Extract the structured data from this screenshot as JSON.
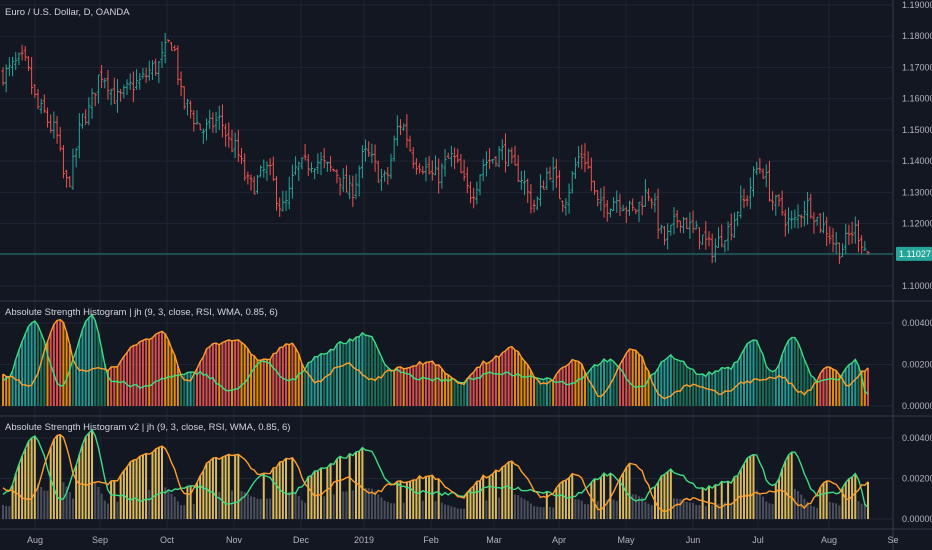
{
  "theme": {
    "background": "#131722",
    "grid": "#1f2433",
    "separator": "#363a45",
    "text": "#b2b5be",
    "bull": "#26a69a",
    "bear": "#ef5350",
    "price_tag": "#26a69a",
    "hist_up_strong": "#26a69a",
    "hist_down_strong": "#ef5350",
    "hist_orange": "#ff9800",
    "hist_yellow": "#e6c35c",
    "hist_gray": "#4e5260",
    "line_bull": "#3ddc84",
    "line_bear": "#ff9e2c"
  },
  "chart_data": [
    {
      "type": "ohlc",
      "title": "Euro / U.S. Dollar, D, OANDA",
      "ylim": [
        1.095,
        1.19
      ],
      "y_ticks": [
        "1.10000",
        "1.11000",
        "1.12000",
        "1.13000",
        "1.14000",
        "1.15000",
        "1.16000",
        "1.17000",
        "1.18000",
        "1.19000"
      ],
      "last_price": "1.11027",
      "x_ticks": [
        "Aug",
        "Sep",
        "Oct",
        "Nov",
        "Dec",
        "2019",
        "Feb",
        "Mar",
        "Apr",
        "May",
        "Jun",
        "Jul",
        "Aug",
        "Se"
      ],
      "close_anchors": [
        [
          0,
          1.168
        ],
        [
          6,
          1.172
        ],
        [
          12,
          1.156
        ],
        [
          16,
          1.15
        ],
        [
          20,
          1.133
        ],
        [
          26,
          1.155
        ],
        [
          31,
          1.168
        ],
        [
          36,
          1.16
        ],
        [
          42,
          1.165
        ],
        [
          48,
          1.17
        ],
        [
          53,
          1.178
        ],
        [
          57,
          1.158
        ],
        [
          63,
          1.15
        ],
        [
          68,
          1.153
        ],
        [
          72,
          1.145
        ],
        [
          78,
          1.132
        ],
        [
          83,
          1.137
        ],
        [
          88,
          1.125
        ],
        [
          93,
          1.138
        ],
        [
          98,
          1.14
        ],
        [
          104,
          1.137
        ],
        [
          109,
          1.13
        ],
        [
          114,
          1.142
        ],
        [
          120,
          1.134
        ],
        [
          125,
          1.152
        ],
        [
          130,
          1.14
        ],
        [
          136,
          1.135
        ],
        [
          141,
          1.141
        ],
        [
          147,
          1.13
        ],
        [
          152,
          1.14
        ],
        [
          157,
          1.143
        ],
        [
          162,
          1.136
        ],
        [
          167,
          1.126
        ],
        [
          172,
          1.137
        ],
        [
          176,
          1.128
        ],
        [
          182,
          1.142
        ],
        [
          188,
          1.125
        ],
        [
          193,
          1.128
        ],
        [
          198,
          1.124
        ],
        [
          203,
          1.13
        ],
        [
          208,
          1.115
        ],
        [
          213,
          1.122
        ],
        [
          218,
          1.117
        ],
        [
          223,
          1.112
        ],
        [
          228,
          1.118
        ],
        [
          232,
          1.126
        ],
        [
          238,
          1.138
        ],
        [
          243,
          1.126
        ],
        [
          248,
          1.12
        ],
        [
          253,
          1.126
        ],
        [
          258,
          1.119
        ],
        [
          263,
          1.112
        ],
        [
          268,
          1.118
        ],
        [
          272,
          1.111
        ]
      ],
      "count": 273
    },
    {
      "type": "histogram",
      "title": "Absolute Strength Histogram | jh (9, 3, close, RSI, WMA, 0.85, 6)",
      "ylim": [
        0,
        0.0047
      ],
      "y_ticks": [
        "0.00000",
        "0.00200",
        "0.00400"
      ],
      "bull_anchors": [
        [
          0,
          0.0012
        ],
        [
          10,
          0.004
        ],
        [
          18,
          0.001
        ],
        [
          28,
          0.0044
        ],
        [
          34,
          0.0012
        ],
        [
          44,
          0.0009
        ],
        [
          52,
          0.0014
        ],
        [
          62,
          0.0016
        ],
        [
          72,
          0.0007
        ],
        [
          82,
          0.0021
        ],
        [
          90,
          0.0012
        ],
        [
          100,
          0.0025
        ],
        [
          108,
          0.0031
        ],
        [
          114,
          0.0035
        ],
        [
          122,
          0.0018
        ],
        [
          132,
          0.0013
        ],
        [
          144,
          0.0012
        ],
        [
          156,
          0.0016
        ],
        [
          168,
          0.0014
        ],
        [
          178,
          0.0011
        ],
        [
          190,
          0.0022
        ],
        [
          200,
          0.0009
        ],
        [
          210,
          0.0024
        ],
        [
          220,
          0.0015
        ],
        [
          228,
          0.0018
        ],
        [
          236,
          0.0032
        ],
        [
          242,
          0.0016
        ],
        [
          248,
          0.0033
        ],
        [
          256,
          0.0012
        ],
        [
          262,
          0.0013
        ],
        [
          268,
          0.0022
        ],
        [
          272,
          0.0005
        ]
      ],
      "bear_anchors": [
        [
          0,
          0.0015
        ],
        [
          8,
          0.001
        ],
        [
          18,
          0.0042
        ],
        [
          24,
          0.0017
        ],
        [
          34,
          0.0018
        ],
        [
          42,
          0.003
        ],
        [
          50,
          0.0035
        ],
        [
          58,
          0.0012
        ],
        [
          66,
          0.003
        ],
        [
          72,
          0.0032
        ],
        [
          82,
          0.0022
        ],
        [
          90,
          0.003
        ],
        [
          98,
          0.0012
        ],
        [
          108,
          0.002
        ],
        [
          116,
          0.0013
        ],
        [
          124,
          0.0018
        ],
        [
          134,
          0.0021
        ],
        [
          144,
          0.0011
        ],
        [
          152,
          0.0021
        ],
        [
          160,
          0.0028
        ],
        [
          170,
          0.0011
        ],
        [
          180,
          0.0022
        ],
        [
          188,
          0.0005
        ],
        [
          198,
          0.0028
        ],
        [
          208,
          0.0004
        ],
        [
          216,
          0.001
        ],
        [
          226,
          0.0006
        ],
        [
          234,
          0.0012
        ],
        [
          244,
          0.0014
        ],
        [
          252,
          0.0006
        ],
        [
          260,
          0.0019
        ],
        [
          266,
          0.001
        ],
        [
          272,
          0.0018
        ]
      ]
    },
    {
      "type": "histogram",
      "title": "Absolute Strength Histogram v2 | jh (9, 3, close, RSI, WMA, 0.85, 6)",
      "ylim": [
        0,
        0.0047
      ],
      "y_ticks": [
        "0.00000",
        "0.00200",
        "0.00400"
      ],
      "note_same_series_as_panel_2": true
    }
  ]
}
